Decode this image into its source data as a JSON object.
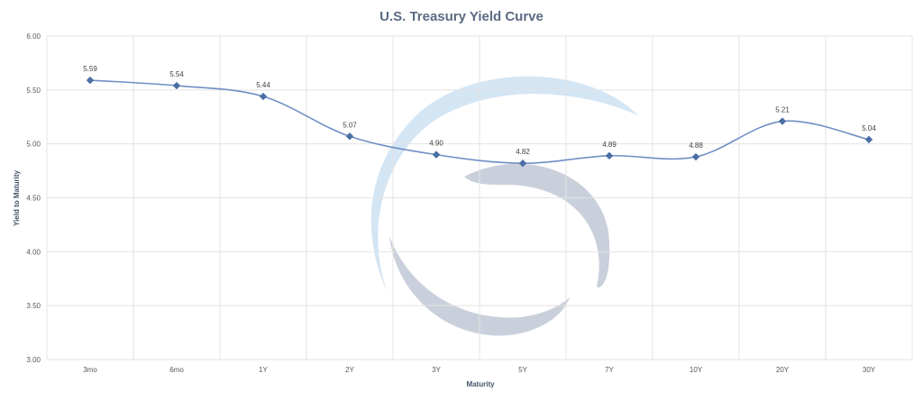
{
  "chart_data": {
    "type": "line",
    "title": "U.S. Treasury Yield Curve",
    "xlabel": "Maturity",
    "ylabel": "Yield to Maturity",
    "categories": [
      "3mo",
      "6mo",
      "1Y",
      "2Y",
      "3Y",
      "5Y",
      "7Y",
      "10Y",
      "20Y",
      "30Y"
    ],
    "series": [
      {
        "values": [
          5.59,
          5.54,
          5.44,
          5.07,
          4.9,
          4.82,
          4.89,
          4.88,
          5.21,
          5.04
        ]
      }
    ],
    "data_labels": [
      "5.59",
      "5.54",
      "5.44",
      "5.07",
      "4.90",
      "4.82",
      "4.89",
      "4.88",
      "5.21",
      "5.04"
    ],
    "y_ticks": [
      "3.00",
      "3.50",
      "4.00",
      "4.50",
      "5.00",
      "5.50",
      "6.00"
    ],
    "ylim": [
      3.0,
      6.0
    ],
    "grid": true,
    "smooth": true,
    "marker": "diamond",
    "legend": "none",
    "colors": {
      "line": "#6f8fc4",
      "marker": "#4a6fa5",
      "grid": "#e3e3e3",
      "title": "#5b6b82",
      "watermark_blue": "#cfe2f3",
      "watermark_gray": "#c5ccd8"
    }
  }
}
